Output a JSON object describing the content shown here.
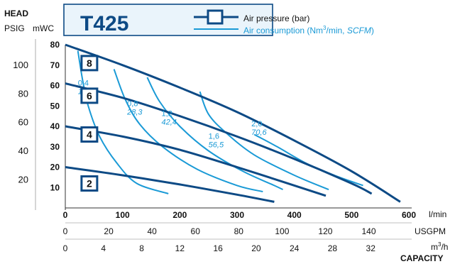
{
  "chart_data": {
    "type": "line",
    "title": "T425",
    "colors": {
      "pressure": "#0d4a85",
      "consumption": "#1a9ad6"
    },
    "legend": {
      "placement": "top",
      "pressure_label": "Air pressure (bar)",
      "consumption_prefix": "Air consumption (Nm",
      "consumption_sup": "3",
      "consumption_mid": "/min, ",
      "consumption_unit_it": "SCFM",
      "consumption_close": ")"
    },
    "y_axis": {
      "title": "HEAD",
      "units_left": "PSIG",
      "units_right": "mWC",
      "mwc_range": [
        0,
        80
      ],
      "mwc_ticks": [
        "10",
        "20",
        "30",
        "40",
        "50",
        "60",
        "70",
        "80"
      ],
      "psig_ticks": [
        "20",
        "40",
        "60",
        "80",
        "100"
      ],
      "psig_values": [
        20,
        40,
        60,
        80,
        100
      ]
    },
    "x_axes": [
      {
        "unit": "l/min",
        "range": [
          0,
          600
        ],
        "ticks": [
          "0",
          "100",
          "200",
          "300",
          "400",
          "500",
          "600"
        ]
      },
      {
        "unit": "USGPM",
        "range": [
          0,
          158.5
        ],
        "ticks": [
          "0",
          "20",
          "40",
          "60",
          "80",
          "100",
          "120",
          "140"
        ]
      },
      {
        "unit_base": "m",
        "unit_sup": "3",
        "unit_tail": "/h",
        "range": [
          0,
          36
        ],
        "ticks": [
          "0",
          "4",
          "8",
          "12",
          "16",
          "20",
          "24",
          "28",
          "32"
        ]
      }
    ],
    "capacity_label": "CAPACITY",
    "pressure_series": [
      {
        "name": "8",
        "label_at": [
          42,
          71
        ],
        "points": [
          [
            0,
            80
          ],
          [
            100,
            70
          ],
          [
            200,
            59
          ],
          [
            300,
            47
          ],
          [
            400,
            33
          ],
          [
            500,
            18
          ],
          [
            585,
            3
          ]
        ]
      },
      {
        "name": "6",
        "label_at": [
          42,
          55
        ],
        "points": [
          [
            0,
            61
          ],
          [
            100,
            54
          ],
          [
            200,
            45
          ],
          [
            300,
            35
          ],
          [
            400,
            24
          ],
          [
            500,
            12
          ],
          [
            535,
            7
          ]
        ]
      },
      {
        "name": "4",
        "label_at": [
          42,
          36
        ],
        "points": [
          [
            0,
            40
          ],
          [
            100,
            35
          ],
          [
            200,
            28.5
          ],
          [
            300,
            20
          ],
          [
            400,
            11
          ],
          [
            455,
            6
          ]
        ]
      },
      {
        "name": "2",
        "label_at": [
          42,
          12
        ],
        "points": [
          [
            0,
            20
          ],
          [
            100,
            16
          ],
          [
            200,
            11.5
          ],
          [
            300,
            6.5
          ],
          [
            365,
            3
          ]
        ]
      }
    ],
    "consumption_series": [
      {
        "name": "0,4",
        "scfm": "14,1",
        "label_at": [
          22,
          60
        ],
        "points": [
          [
            22,
            77
          ],
          [
            30,
            63
          ],
          [
            40,
            50
          ],
          [
            60,
            35
          ],
          [
            90,
            22
          ],
          [
            125,
            12
          ],
          [
            180,
            7
          ]
        ]
      },
      {
        "name": "0,8",
        "scfm": "28,3",
        "label_at": [
          108,
          50
        ],
        "points": [
          [
            85,
            68
          ],
          [
            105,
            53
          ],
          [
            130,
            41
          ],
          [
            170,
            30
          ],
          [
            230,
            19
          ],
          [
            300,
            11
          ],
          [
            345,
            8
          ]
        ]
      },
      {
        "name": "1,2",
        "scfm": "42,4",
        "label_at": [
          168,
          45
        ],
        "points": [
          [
            143,
            64
          ],
          [
            165,
            52
          ],
          [
            200,
            40
          ],
          [
            250,
            28
          ],
          [
            310,
            18
          ],
          [
            365,
            11
          ],
          [
            380,
            9
          ]
        ]
      },
      {
        "name": "1,6",
        "scfm": "56,5",
        "label_at": [
          250,
          34
        ],
        "points": [
          [
            235,
            57
          ],
          [
            250,
            46
          ],
          [
            280,
            37
          ],
          [
            330,
            26
          ],
          [
            400,
            16
          ],
          [
            460,
            9
          ]
        ]
      },
      {
        "name": "2,0",
        "scfm": "70,6",
        "label_at": [
          325,
          40
        ],
        "points": [
          [
            330,
            36
          ],
          [
            370,
            30
          ],
          [
            420,
            22
          ],
          [
            470,
            16
          ],
          [
            520,
            11
          ]
        ]
      }
    ]
  }
}
